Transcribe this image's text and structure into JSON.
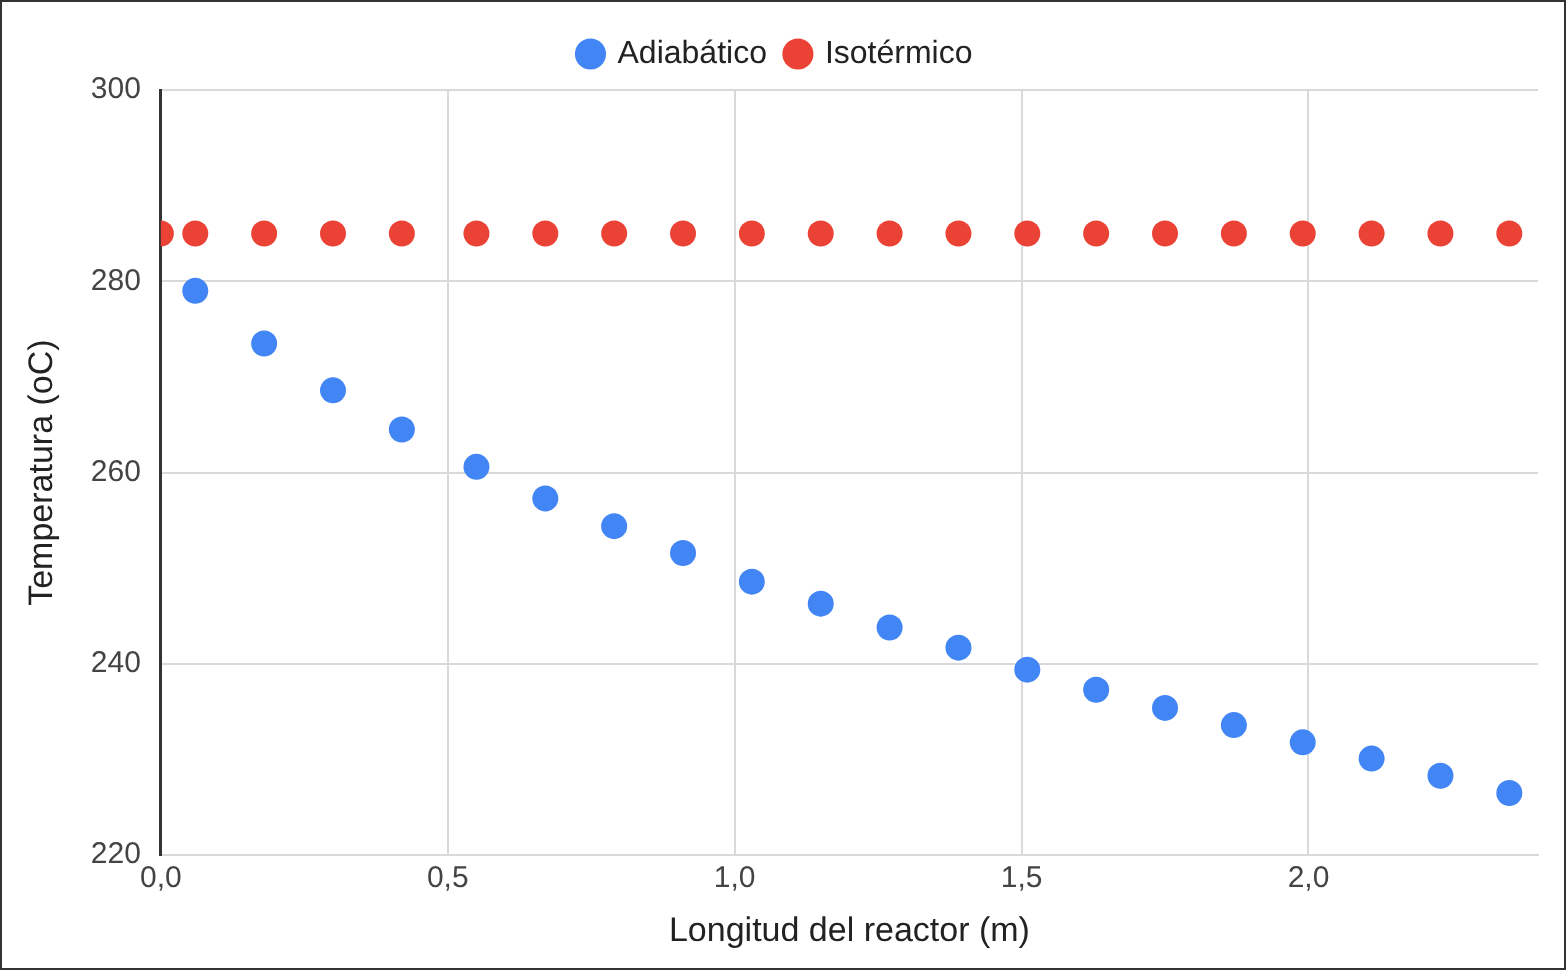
{
  "chart_data": {
    "type": "scatter",
    "xlabel": "Longitud del reactor (m)",
    "ylabel": "Temperatura (oC)",
    "series": [
      {
        "name": "Adiabático",
        "color": "#4285f4",
        "x": [
          0.06,
          0.18,
          0.3,
          0.42,
          0.55,
          0.67,
          0.79,
          0.91,
          1.03,
          1.15,
          1.27,
          1.39,
          1.51,
          1.63,
          1.75,
          1.87,
          1.99,
          2.11,
          2.23,
          2.35
        ],
        "values": [
          279,
          273.5,
          268.6,
          264.5,
          260.6,
          257.3,
          254.4,
          251.6,
          248.6,
          246.3,
          243.8,
          241.7,
          239.4,
          237.3,
          235.4,
          233.6,
          231.8,
          230.1,
          228.3,
          226.5
        ]
      },
      {
        "name": "Isotérmico",
        "color": "#ea4335",
        "x": [
          0,
          0.06,
          0.18,
          0.3,
          0.42,
          0.55,
          0.67,
          0.79,
          0.91,
          1.03,
          1.15,
          1.27,
          1.39,
          1.51,
          1.63,
          1.75,
          1.87,
          1.99,
          2.11,
          2.23,
          2.35
        ],
        "values": [
          285,
          285,
          285,
          285,
          285,
          285,
          285,
          285,
          285,
          285,
          285,
          285,
          285,
          285,
          285,
          285,
          285,
          285,
          285,
          285,
          285
        ]
      }
    ],
    "xlim": [
      0,
      2.4
    ],
    "xticks": [
      {
        "value": 0,
        "label": "0,0"
      },
      {
        "value": 0.5,
        "label": "0,5"
      },
      {
        "value": 1,
        "label": "1,0"
      },
      {
        "value": 1.5,
        "label": "1,5"
      },
      {
        "value": 2,
        "label": "2,0"
      }
    ],
    "ylim": [
      220,
      300
    ],
    "yticks": [
      220,
      240,
      260,
      280,
      300
    ],
    "grid": true,
    "legend": "top",
    "marker": "circle"
  }
}
